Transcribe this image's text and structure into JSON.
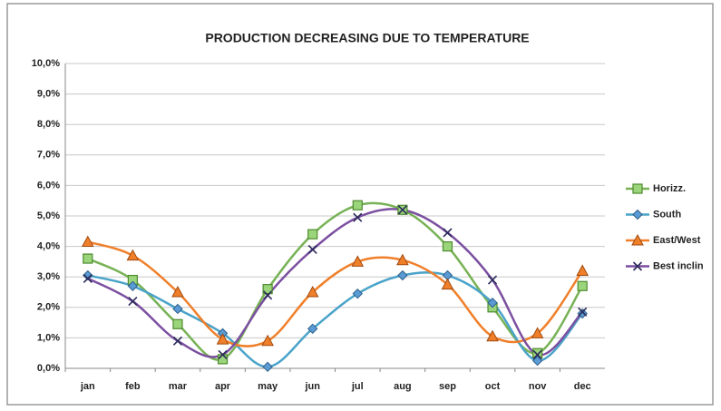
{
  "chart_data": {
    "type": "line",
    "title": "PRODUCTION DECREASING DUE TO TEMPERATURE",
    "categories": [
      "jan",
      "feb",
      "mar",
      "apr",
      "may",
      "jun",
      "jul",
      "aug",
      "sep",
      "oct",
      "nov",
      "dec"
    ],
    "series": [
      {
        "name": "Horizz.",
        "color": "#77b255",
        "marker": "square",
        "values": [
          3.6,
          2.9,
          1.45,
          0.3,
          2.6,
          4.4,
          5.35,
          5.2,
          4.0,
          2.0,
          0.5,
          2.7
        ]
      },
      {
        "name": "South",
        "color": "#4aa3c9",
        "marker": "diamond",
        "values": [
          3.05,
          2.7,
          1.95,
          1.15,
          0.05,
          1.3,
          2.45,
          3.05,
          3.05,
          2.15,
          0.25,
          1.8
        ]
      },
      {
        "name": "East/West",
        "color": "#f07f2a",
        "marker": "triangle",
        "values": [
          4.15,
          3.7,
          2.5,
          0.95,
          0.9,
          2.5,
          3.5,
          3.55,
          2.75,
          1.05,
          1.15,
          3.2
        ]
      },
      {
        "name": "Best inclin",
        "color": "#7b4fa0",
        "marker": "x",
        "values": [
          2.95,
          2.2,
          0.9,
          0.45,
          2.4,
          3.9,
          4.95,
          5.2,
          4.45,
          2.9,
          0.45,
          1.85
        ]
      }
    ],
    "ylim": [
      0,
      10
    ],
    "yticks": [
      {
        "value": 0,
        "label": "0,0%"
      },
      {
        "value": 1,
        "label": "1,0%"
      },
      {
        "value": 2,
        "label": "2,0%"
      },
      {
        "value": 3,
        "label": "3,0%"
      },
      {
        "value": 4,
        "label": "4,0%"
      },
      {
        "value": 5,
        "label": "5,0%"
      },
      {
        "value": 6,
        "label": "6,0%"
      },
      {
        "value": 7,
        "label": "7,0%"
      },
      {
        "value": 8,
        "label": "8,0%"
      },
      {
        "value": 9,
        "label": "9,0%"
      },
      {
        "value": 10,
        "label": "10,0%"
      }
    ],
    "grid": true,
    "legend": "right"
  }
}
